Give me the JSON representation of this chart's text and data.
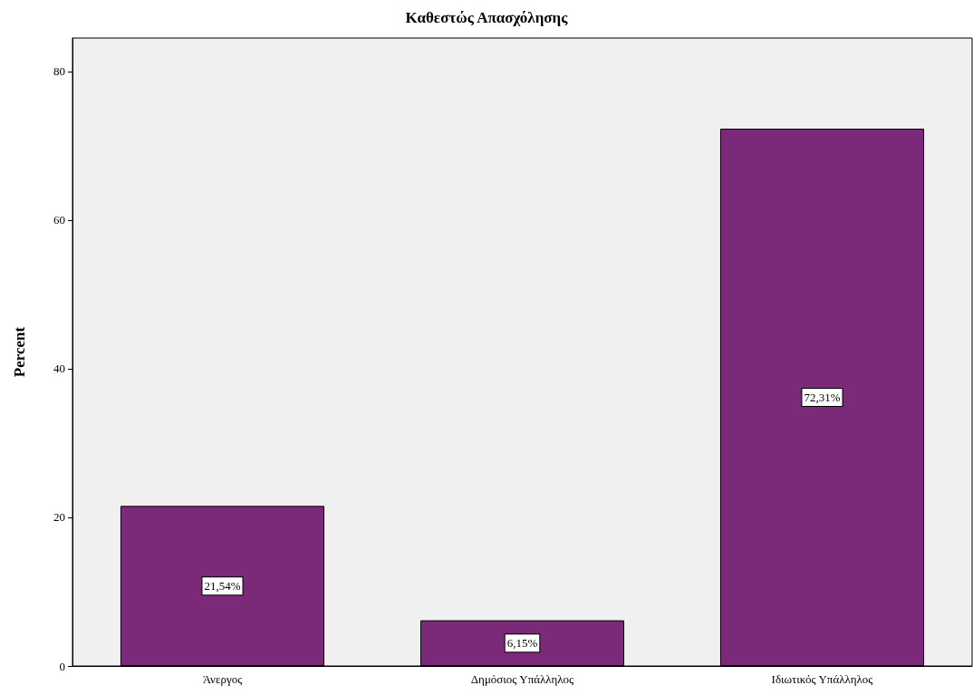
{
  "chart_data": {
    "type": "bar",
    "title": "Καθεστώς Απασχόλησης",
    "ylabel": "Percent",
    "categories": [
      "Άνεργος",
      "Δημόσιος Υπάλληλος",
      "Ιδιωτικός Υπάλληλος"
    ],
    "values": [
      21.54,
      6.15,
      72.31
    ],
    "value_labels": [
      "21,54%",
      "6,15%",
      "72,31%"
    ],
    "color": "#7b2a7a",
    "ylim": [
      0,
      84.5
    ],
    "yticks": [
      0,
      20,
      40,
      60,
      80
    ],
    "grid": false
  }
}
